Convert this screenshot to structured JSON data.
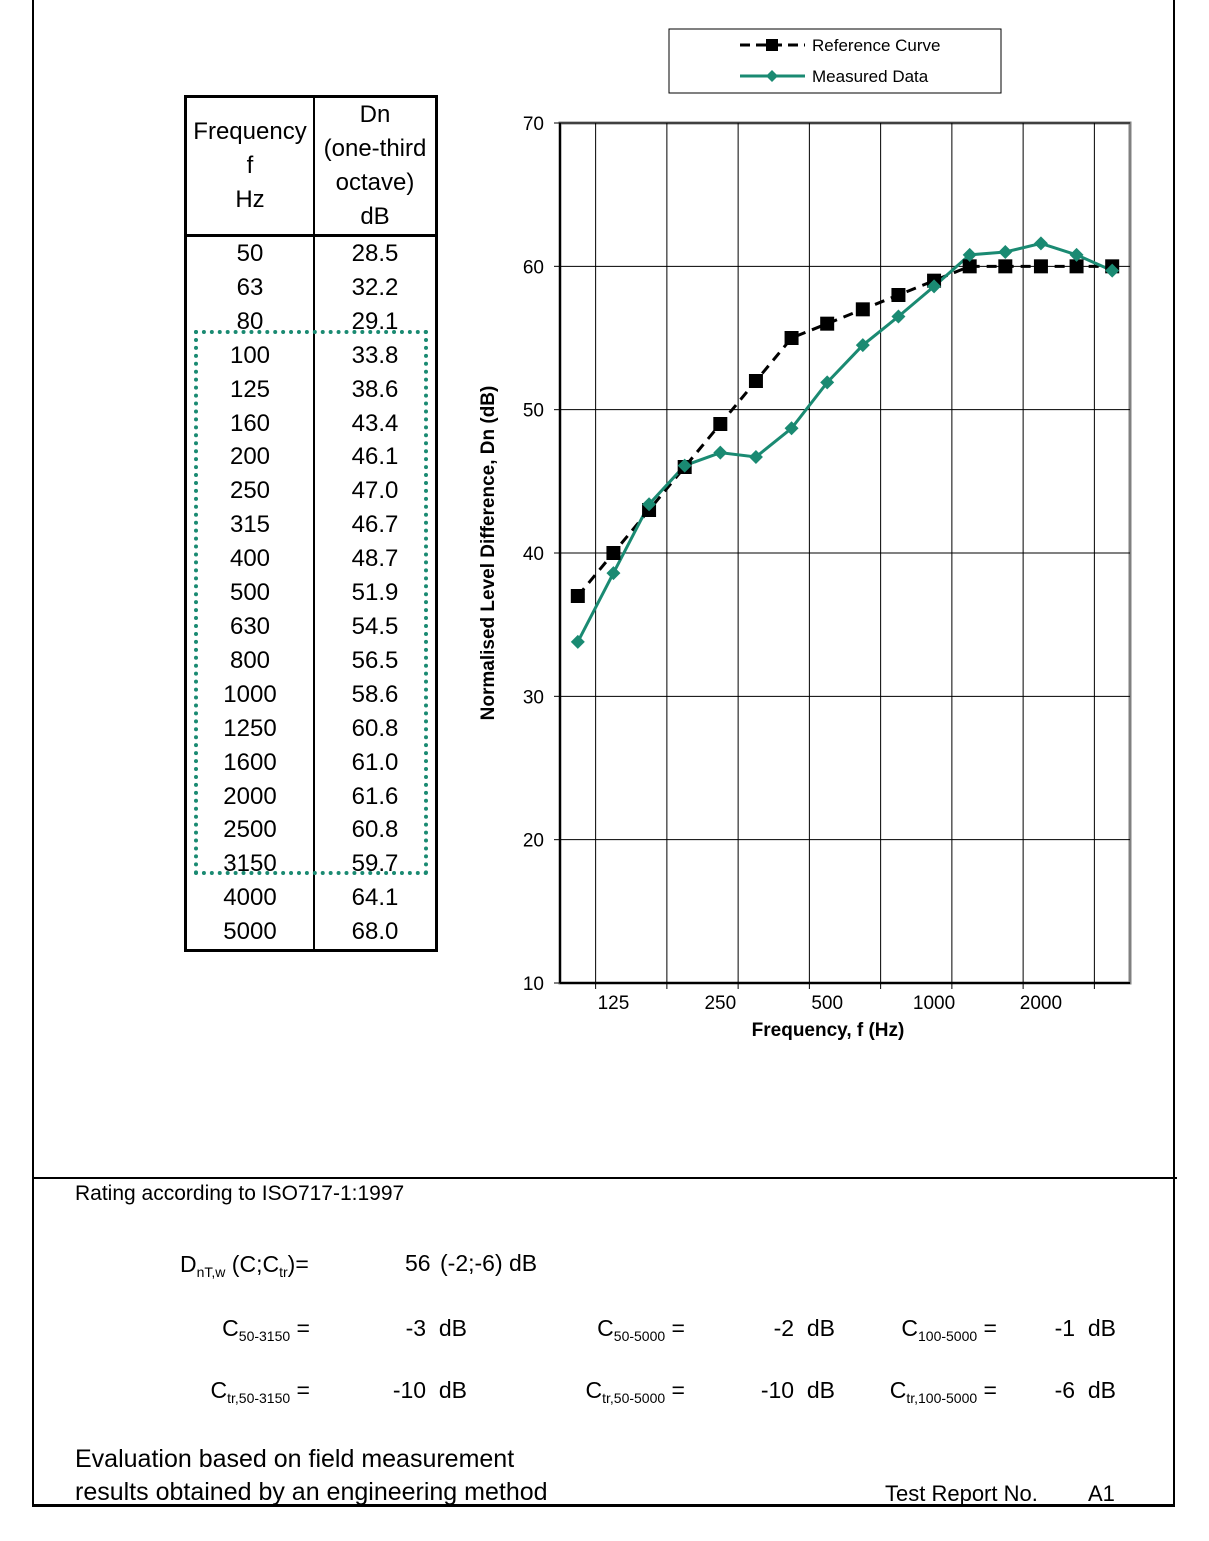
{
  "table": {
    "header_freq": [
      "Frequency",
      "f",
      "Hz"
    ],
    "header_dn": [
      "Dn",
      "(one-third",
      "octave)",
      "dB"
    ],
    "rows": [
      {
        "f": "50",
        "dn": "28.5"
      },
      {
        "f": "63",
        "dn": "32.2"
      },
      {
        "f": "80",
        "dn": "29.1"
      },
      {
        "f": "100",
        "dn": "33.8"
      },
      {
        "f": "125",
        "dn": "38.6"
      },
      {
        "f": "160",
        "dn": "43.4"
      },
      {
        "f": "200",
        "dn": "46.1"
      },
      {
        "f": "250",
        "dn": "47.0"
      },
      {
        "f": "315",
        "dn": "46.7"
      },
      {
        "f": "400",
        "dn": "48.7"
      },
      {
        "f": "500",
        "dn": "51.9"
      },
      {
        "f": "630",
        "dn": "54.5"
      },
      {
        "f": "800",
        "dn": "56.5"
      },
      {
        "f": "1000",
        "dn": "58.6"
      },
      {
        "f": "1250",
        "dn": "60.8"
      },
      {
        "f": "1600",
        "dn": "61.0"
      },
      {
        "f": "2000",
        "dn": "61.6"
      },
      {
        "f": "2500",
        "dn": "60.8"
      },
      {
        "f": "3150",
        "dn": "59.7"
      },
      {
        "f": "4000",
        "dn": "64.1"
      },
      {
        "f": "5000",
        "dn": "68.0"
      }
    ]
  },
  "chart_data": {
    "type": "line",
    "xlabel": "Frequency, f (Hz)",
    "ylabel": "Normalised Level Difference, Dn (dB)",
    "ylim": [
      10,
      70
    ],
    "y_ticks": [
      10,
      20,
      30,
      40,
      50,
      60,
      70
    ],
    "x_categories": [
      "100",
      "125",
      "160",
      "200",
      "250",
      "315",
      "400",
      "500",
      "630",
      "800",
      "1000",
      "1250",
      "1600",
      "2000",
      "2500",
      "3150"
    ],
    "x_tick_labels": [
      {
        "index": 1,
        "label": "125"
      },
      {
        "index": 4,
        "label": "250"
      },
      {
        "index": 7,
        "label": "500"
      },
      {
        "index": 10,
        "label": "1000"
      },
      {
        "index": 13,
        "label": "2000"
      }
    ],
    "series": [
      {
        "name": "Reference Curve",
        "color": "#000000",
        "marker": "square",
        "dashed": true,
        "values": [
          37,
          40,
          43,
          46,
          49,
          52,
          55,
          56,
          57,
          58,
          59,
          60,
          60,
          60,
          60,
          60
        ]
      },
      {
        "name": "Measured Data",
        "color": "#1a8a72",
        "marker": "diamond",
        "dashed": false,
        "values": [
          33.8,
          38.6,
          43.4,
          46.1,
          47.0,
          46.7,
          48.7,
          51.9,
          54.5,
          56.5,
          58.6,
          60.8,
          61.0,
          61.6,
          60.8,
          59.7
        ]
      }
    ],
    "legend_position": "top"
  },
  "rating": {
    "title": "Rating according to ISO717-1:1997",
    "dntw": {
      "D": "D",
      "sub": "nT,w",
      "rest": " (C;C",
      "sub2": "tr",
      "close": ")=",
      "value": "56",
      "brackets": "(-2;-6) dB"
    },
    "c_row": [
      {
        "label": "C",
        "sub": "50-3150",
        "eq": " =",
        "value": "-3  dB"
      },
      {
        "label": "C",
        "sub": "50-5000",
        "eq": " =",
        "value": "-2  dB"
      },
      {
        "label": "C",
        "sub": "100-5000",
        "eq": " =",
        "value": "-1  dB"
      }
    ],
    "ctr_row": [
      {
        "label": "C",
        "sub": "tr,50-3150",
        "eq": " =",
        "value": "-10  dB"
      },
      {
        "label": "C",
        "sub": "tr,50-5000",
        "eq": " =",
        "value": "-10  dB"
      },
      {
        "label": "C",
        "sub": "tr,100-5000",
        "eq": " =",
        "value": "-6  dB"
      }
    ],
    "evaluation_line1": "Evaluation based on field measurement",
    "evaluation_line2": "results obtained by an engineering method",
    "report_label": "Test Report No.",
    "report_number": "A1"
  }
}
